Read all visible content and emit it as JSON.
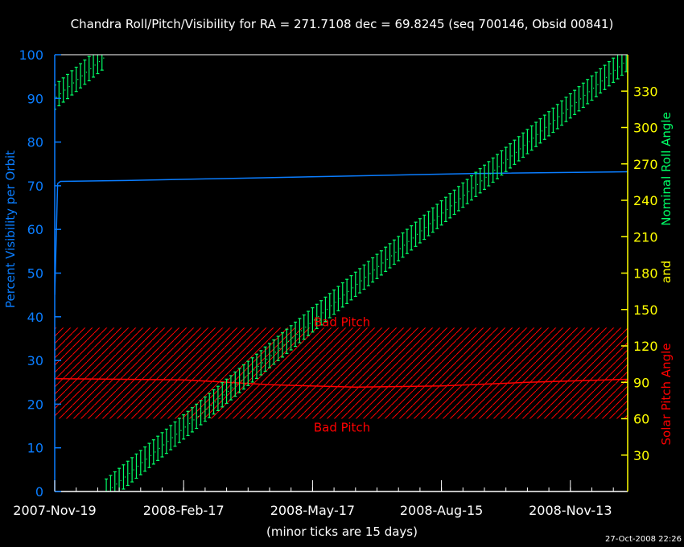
{
  "chart_data": {
    "type": "line",
    "title": "Chandra Roll/Pitch/Visibility for RA = 271.7108 dec = 69.8245 (seq 700146, Obsid 00841)",
    "xlabel": "(minor ticks are 15 days)",
    "ylabel_left": "Percent Visibility per Orbit",
    "ylabel_right_parts": [
      "Solar Pitch Angle",
      "and",
      "Nominal Roll Angle"
    ],
    "timestamp": "27-Oct-2008 22:26",
    "xlim": [
      "2007-Nov-19",
      "2008-Dec-23"
    ],
    "x_ticks": [
      "2007-Nov-19",
      "2008-Feb-17",
      "2008-May-17",
      "2008-Aug-15",
      "2008-Nov-13"
    ],
    "x_minor_tick_days": 15,
    "ylim_left": [
      0,
      100
    ],
    "y_ticks_left": [
      "0",
      "10",
      "20",
      "30",
      "40",
      "50",
      "60",
      "70",
      "80",
      "90",
      "100"
    ],
    "ylim_right": [
      0,
      360
    ],
    "y_ticks_right": [
      "30",
      "60",
      "90",
      "120",
      "150",
      "180",
      "210",
      "240",
      "270",
      "300",
      "330"
    ],
    "grid": false,
    "bad_pitch": {
      "range": [
        60,
        135
      ],
      "label": "Bad Pitch",
      "color": "#ff0000"
    },
    "colors": {
      "visibility": "#0a7dff",
      "roll": "#00ff66",
      "pitch": "#ff0000",
      "right_axis": "#ffff00",
      "frame": "#ffffff"
    },
    "series": [
      {
        "key": "visibility",
        "axis": "left",
        "points": [
          [
            "2007-Nov-19",
            45
          ],
          [
            "2007-Nov-21",
            70.5
          ],
          [
            "2007-Nov-23",
            71
          ],
          [
            "2008-Jan-08",
            71.2
          ],
          [
            "2008-Mar-09",
            71.6
          ],
          [
            "2008-Jun-07",
            72.2
          ],
          [
            "2008-Sep-05",
            72.8
          ],
          [
            "2008-Dec-23",
            73.2
          ]
        ]
      },
      {
        "key": "pitch",
        "axis": "right",
        "points": [
          [
            "2007-Nov-19",
            93
          ],
          [
            "2008-Feb-17",
            92
          ],
          [
            "2008-Apr-17",
            88
          ],
          [
            "2008-Jun-16",
            86
          ],
          [
            "2008-Aug-15",
            87
          ],
          [
            "2008-Oct-14",
            90
          ],
          [
            "2008-Dec-23",
            92.5
          ]
        ]
      },
      {
        "key": "roll",
        "axis": "right",
        "error": 10,
        "start": "2007-Nov-19",
        "step_days": 3,
        "values": [
          325.0,
          327.9,
          330.9,
          333.8,
          336.8,
          339.7,
          342.6,
          345.6,
          348.5,
          351.5,
          354.4,
          357.3,
          0.3,
          3.2,
          6.2,
          9.1,
          12.0,
          15.0,
          17.9,
          20.9,
          23.8,
          26.7,
          29.7,
          32.6,
          35.6,
          38.5,
          41.4,
          44.4,
          47.3,
          50.3,
          53.2,
          56.1,
          59.1,
          62.0,
          65.0,
          67.9,
          70.8,
          73.8,
          76.7,
          79.7,
          82.6,
          85.5,
          88.5,
          91.4,
          94.4,
          97.3,
          100.2,
          103.2,
          106.1,
          109.1,
          112.0,
          114.9,
          117.9,
          120.8,
          123.8,
          126.7,
          129.6,
          132.6,
          135.5,
          138.5,
          141.4,
          144.3,
          147.3,
          150.2,
          153.2,
          156.1,
          159.0,
          162.0,
          164.9,
          167.9,
          170.8,
          173.7,
          176.7,
          179.6,
          182.6,
          185.5,
          188.4,
          191.4,
          194.3,
          197.3,
          200.2,
          203.1,
          206.1,
          209.0,
          212.0,
          214.9,
          217.8,
          220.8,
          223.7,
          226.7,
          229.6,
          232.5,
          235.5,
          238.4,
          241.4,
          244.3,
          247.2,
          250.2,
          253.1,
          256.1,
          259.0,
          261.9,
          264.9,
          267.8,
          270.8,
          273.7,
          276.6,
          279.6,
          282.5,
          285.5,
          288.4,
          291.3,
          294.3,
          297.2,
          300.2,
          303.1,
          306.0,
          309.0,
          311.9,
          314.9,
          317.8,
          320.7,
          323.7,
          326.6,
          329.6,
          332.5,
          335.4,
          338.4,
          341.3,
          344.3,
          347.2,
          350.1,
          353.1,
          356.0
        ]
      }
    ]
  }
}
